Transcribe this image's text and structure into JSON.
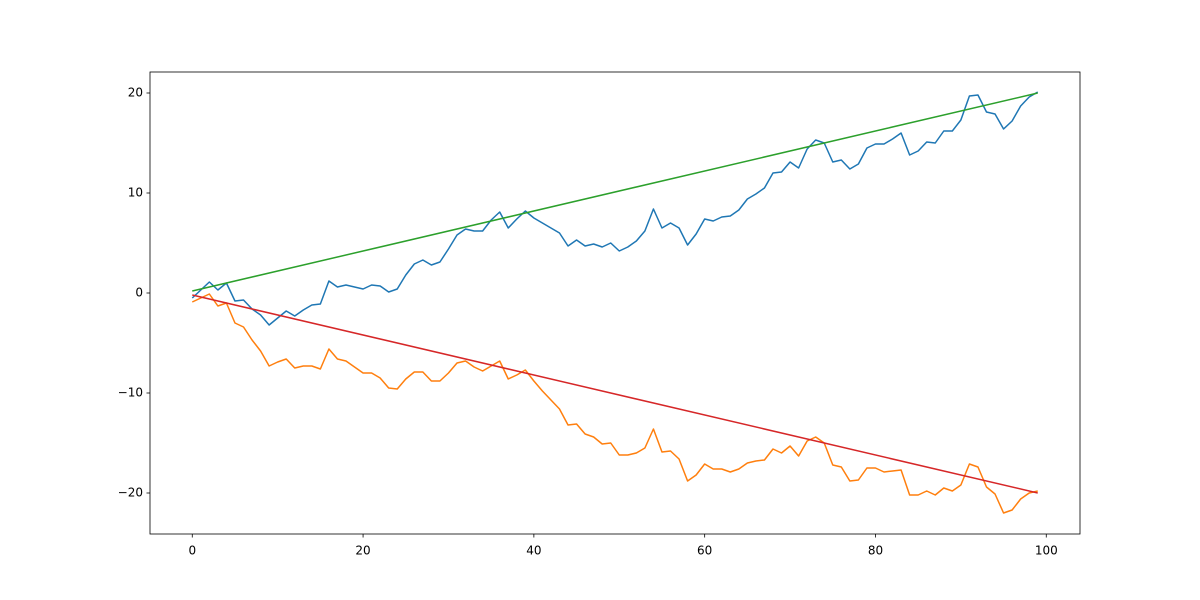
{
  "chart_data": {
    "type": "line",
    "x": [
      0,
      1,
      2,
      3,
      4,
      5,
      6,
      7,
      8,
      9,
      10,
      11,
      12,
      13,
      14,
      15,
      16,
      17,
      18,
      19,
      20,
      21,
      22,
      23,
      24,
      25,
      26,
      27,
      28,
      29,
      30,
      31,
      32,
      33,
      34,
      35,
      36,
      37,
      38,
      39,
      40,
      41,
      42,
      43,
      44,
      45,
      46,
      47,
      48,
      49,
      50,
      51,
      52,
      53,
      54,
      55,
      56,
      57,
      58,
      59,
      60,
      61,
      62,
      63,
      64,
      65,
      66,
      67,
      68,
      69,
      70,
      71,
      72,
      73,
      74,
      75,
      76,
      77,
      78,
      79,
      80,
      81,
      82,
      83,
      84,
      85,
      86,
      87,
      88,
      89,
      90,
      91,
      92,
      93,
      94,
      95,
      96,
      97,
      98,
      99
    ],
    "series": [
      {
        "color": "#1f77b4",
        "values": [
          -0.5,
          0.3,
          1.1,
          0.3,
          1.0,
          -0.8,
          -0.7,
          -1.6,
          -2.2,
          -3.2,
          -2.5,
          -1.8,
          -2.3,
          -1.7,
          -1.2,
          -1.1,
          1.2,
          0.6,
          0.8,
          0.6,
          0.4,
          0.8,
          0.7,
          0.1,
          0.4,
          1.8,
          2.9,
          3.3,
          2.8,
          3.1,
          4.4,
          5.8,
          6.4,
          6.2,
          6.2,
          7.3,
          8.1,
          6.5,
          7.4,
          8.2,
          7.5,
          7.0,
          6.5,
          6.0,
          4.7,
          5.3,
          4.7,
          4.9,
          4.6,
          5.0,
          4.2,
          4.6,
          5.2,
          6.2,
          8.4,
          6.5,
          7.0,
          6.5,
          4.8,
          5.9,
          7.4,
          7.2,
          7.6,
          7.7,
          8.3,
          9.4,
          9.9,
          10.5,
          12.0,
          12.1,
          13.1,
          12.5,
          14.4,
          15.3,
          15.0,
          13.1,
          13.3,
          12.4,
          12.9,
          14.5,
          14.9,
          14.9,
          15.4,
          16.0,
          13.8,
          14.2,
          15.1,
          15.0,
          16.2,
          16.2,
          17.3,
          19.7,
          19.8,
          18.1,
          17.9,
          16.4,
          17.2,
          18.7,
          19.6,
          20.1
        ]
      },
      {
        "color": "#ff7f0e",
        "values": [
          -0.9,
          -0.5,
          -0.1,
          -1.3,
          -1.0,
          -3.0,
          -3.4,
          -4.7,
          -5.8,
          -7.3,
          -6.9,
          -6.6,
          -7.5,
          -7.3,
          -7.3,
          -7.6,
          -5.6,
          -6.6,
          -6.8,
          -7.4,
          -8.0,
          -8.0,
          -8.5,
          -9.5,
          -9.6,
          -8.6,
          -7.9,
          -7.9,
          -8.8,
          -8.8,
          -8.0,
          -7.0,
          -6.8,
          -7.4,
          -7.8,
          -7.3,
          -6.8,
          -8.6,
          -8.2,
          -7.7,
          -8.8,
          -9.8,
          -10.7,
          -11.6,
          -13.2,
          -13.1,
          -14.1,
          -14.4,
          -15.1,
          -15.0,
          -16.2,
          -16.2,
          -16.0,
          -15.5,
          -13.6,
          -15.9,
          -15.8,
          -16.6,
          -18.8,
          -18.2,
          -17.1,
          -17.6,
          -17.6,
          -17.9,
          -17.6,
          -17.0,
          -16.8,
          -16.7,
          -15.6,
          -16.0,
          -15.3,
          -16.3,
          -14.8,
          -14.4,
          -15.0,
          -17.2,
          -17.4,
          -18.8,
          -18.7,
          -17.5,
          -17.5,
          -17.9,
          -17.8,
          -17.7,
          -20.2,
          -20.2,
          -19.8,
          -20.2,
          -19.5,
          -19.8,
          -19.2,
          -17.1,
          -17.4,
          -19.4,
          -20.1,
          -22.0,
          -21.7,
          -20.6,
          -20.0,
          -19.8
        ]
      },
      {
        "color": "#2ca02c",
        "x": [
          0,
          99
        ],
        "values": [
          0.2,
          20
        ]
      },
      {
        "color": "#d62728",
        "x": [
          0,
          99
        ],
        "values": [
          -0.2,
          -20
        ]
      }
    ],
    "xlim": [
      -4.95,
      103.95
    ],
    "ylim": [
      -24.1,
      22.1
    ],
    "xticks": [
      0,
      20,
      40,
      60,
      80,
      100
    ],
    "yticks": [
      {
        "value": -20,
        "label": "−20"
      },
      {
        "value": -10,
        "label": "−10"
      },
      0,
      10,
      20
    ],
    "grid": false
  }
}
